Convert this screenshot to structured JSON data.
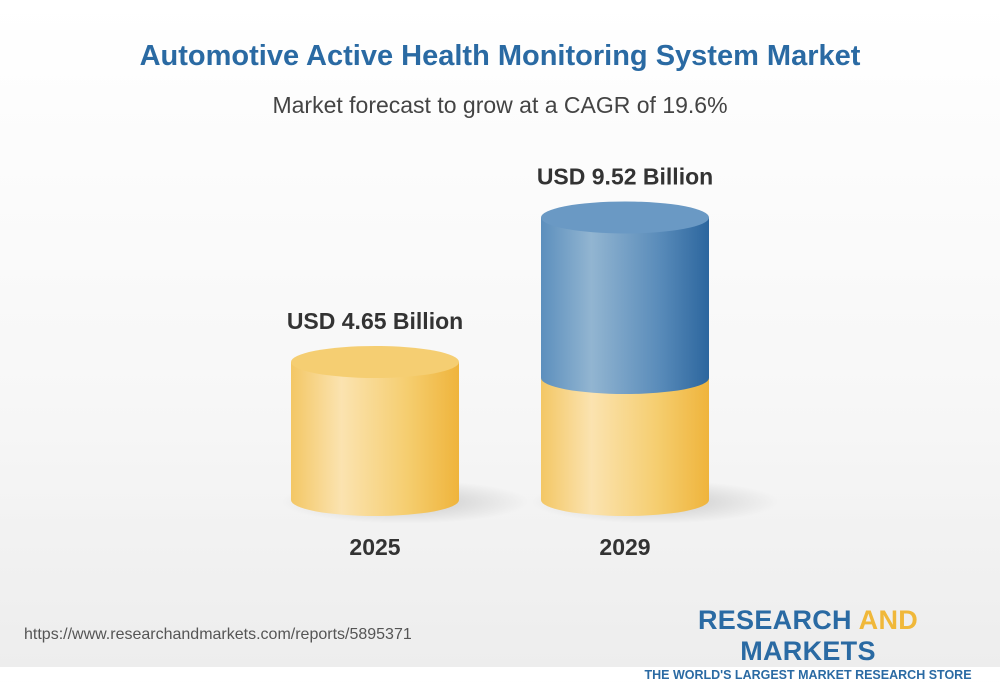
{
  "title": "Automotive Active Health Monitoring System Market",
  "subtitle": "Market forecast to grow at a CAGR of 19.6%",
  "url": "https://www.researchandmarkets.com/reports/5895371",
  "logo": {
    "part1": "RESEARCH ",
    "part2": "AND",
    "part3": " MARKETS",
    "tagline": "THE WORLD'S LARGEST MARKET RESEARCH STORE"
  },
  "colors": {
    "title": "#2a6aa3",
    "base": "#f2c45a",
    "growth": "#3f7bb0",
    "logo_accent": "#f0b83a"
  },
  "chart_data": {
    "type": "bar",
    "style": "3d-cylinder",
    "categories": [
      "2025",
      "2029"
    ],
    "values": [
      4.65,
      9.52
    ],
    "data_labels": [
      "USD 4.65 Billion",
      "USD 9.52 Billion"
    ],
    "unit": "USD Billion",
    "title": "Automotive Active Health Monitoring System Market",
    "subtitle": "Market forecast to grow at a CAGR of 19.6%",
    "grid": false
  }
}
